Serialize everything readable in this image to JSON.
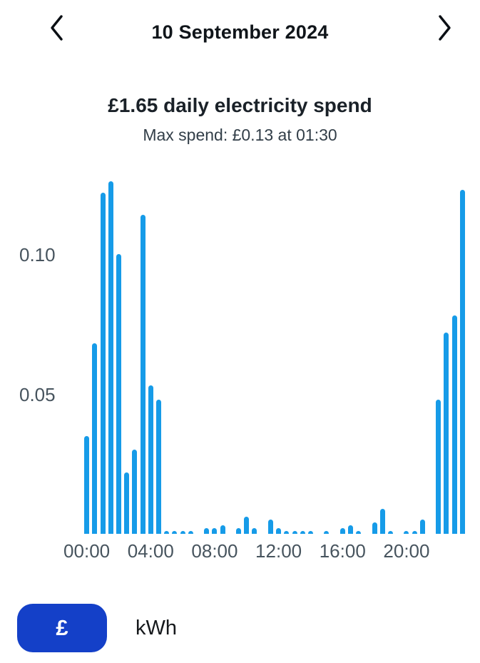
{
  "header": {
    "date": "10 September 2024",
    "prev_icon": "chevron-left",
    "next_icon": "chevron-right"
  },
  "summary": {
    "title": "£1.65 daily electricity spend",
    "subtitle": "Max spend: £0.13 at 01:30"
  },
  "chart_data": {
    "type": "bar",
    "title": "£1.65 daily electricity spend",
    "subtitle": "Max spend: £0.13 at 01:30",
    "unit": "£ per half hour",
    "x": [
      "00:00",
      "00:30",
      "01:00",
      "01:30",
      "02:00",
      "02:30",
      "03:00",
      "03:30",
      "04:00",
      "04:30",
      "05:00",
      "05:30",
      "06:00",
      "06:30",
      "07:00",
      "07:30",
      "08:00",
      "08:30",
      "09:00",
      "09:30",
      "10:00",
      "10:30",
      "11:00",
      "11:30",
      "12:00",
      "12:30",
      "13:00",
      "13:30",
      "14:00",
      "14:30",
      "15:00",
      "15:30",
      "16:00",
      "16:30",
      "17:00",
      "17:30",
      "18:00",
      "18:30",
      "19:00",
      "19:30",
      "20:00",
      "20:30",
      "21:00",
      "21:30",
      "22:00",
      "22:30",
      "23:00",
      "23:30"
    ],
    "values": [
      0.035,
      0.068,
      0.122,
      0.126,
      0.1,
      0.022,
      0.03,
      0.114,
      0.053,
      0.048,
      0.001,
      0.001,
      0.001,
      0.001,
      0,
      0.002,
      0.002,
      0.003,
      0,
      0.002,
      0.006,
      0.002,
      0,
      0.005,
      0.002,
      0.001,
      0.001,
      0.001,
      0.001,
      0,
      0.001,
      0,
      0.002,
      0.003,
      0.001,
      0,
      0.004,
      0.009,
      0.001,
      0,
      0.001,
      0.001,
      0.005,
      0,
      0.048,
      0.072,
      0.078,
      0.123
    ],
    "max_value": 0.13,
    "max_time": "01:30",
    "x_tick_labels": [
      "00:00",
      "04:00",
      "08:00",
      "12:00",
      "16:00",
      "20:00"
    ],
    "x_tick_slots": [
      0,
      8,
      16,
      24,
      32,
      40
    ],
    "y_tick_labels": [
      "0.05",
      "0.10"
    ],
    "y_ticks": [
      0.05,
      0.1
    ],
    "ylim": [
      0,
      0.129
    ],
    "grid": false,
    "legend": "none",
    "bar_color": "#169be8"
  },
  "toggle": {
    "pound_label": "£",
    "kwh_label": "kWh",
    "selected": "£",
    "selected_bg": "#1440c8",
    "selected_fg": "#ffffff"
  },
  "colors": {
    "bar": "#169be8",
    "axis_text": "#47545e",
    "title_text": "#1a2128",
    "date_text": "#10151a",
    "button_blue": "#1440c8",
    "background": "#ffffff"
  }
}
